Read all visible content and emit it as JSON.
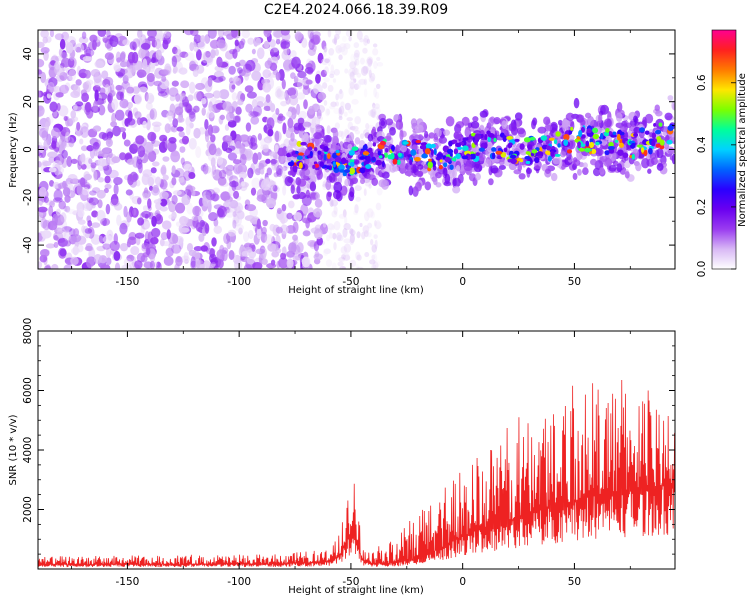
{
  "title": "C2E4.2024.066.18.39.R09",
  "chart_data": [
    {
      "type": "heatmap",
      "xlabel": "Height of straight line (km)",
      "ylabel": "Frequency (Hz)",
      "xlim": [
        -190,
        95
      ],
      "ylim": [
        -50,
        50
      ],
      "xticks": [
        -150,
        -100,
        -50,
        0,
        50
      ],
      "yticks": [
        -40,
        -20,
        0,
        20,
        40
      ],
      "colorbar": {
        "label": "Normalized spectral amplitude",
        "range": [
          0,
          0.77
        ],
        "ticks": [
          0.0,
          0.2,
          0.4,
          0.6
        ],
        "colors": [
          "#ffffff",
          "#d8b8f5",
          "#9a3cf0",
          "#6a00f0",
          "#2a00ff",
          "#0064ff",
          "#00d2ff",
          "#00ff9a",
          "#7cff00",
          "#ffe600",
          "#ff7a00",
          "#ff2020",
          "#ff0090"
        ]
      },
      "regions": [
        {
          "name": "broadband noise",
          "x": [
            -190,
            -62
          ],
          "amplitude": 0.12
        },
        {
          "name": "sparse noise",
          "x": [
            -62,
            -37
          ],
          "amplitude": 0.05
        },
        {
          "name": "meteor signal track",
          "x": [
            -78,
            95
          ],
          "center_freq_hz": [
            -5,
            5
          ],
          "width_hz": 12,
          "peak_amplitude": 0.7
        }
      ]
    },
    {
      "type": "line",
      "xlabel": "Height of straight line (km)",
      "ylabel": "SNR (10 * v/v)",
      "xlim": [
        -190,
        95
      ],
      "ylim": [
        0,
        8000
      ],
      "xticks": [
        -150,
        -100,
        -50,
        0,
        50
      ],
      "yticks": [
        2000,
        4000,
        6000,
        8000
      ],
      "color": "#ee2222",
      "envelope": {
        "x": [
          -190,
          -120,
          -80,
          -60,
          -55,
          -50,
          -49,
          -47,
          -45,
          -40,
          -30,
          -20,
          -10,
          0,
          10,
          20,
          30,
          40,
          50,
          60,
          70,
          80,
          95
        ],
        "base": [
          150,
          160,
          170,
          250,
          450,
          1200,
          1500,
          900,
          300,
          180,
          200,
          350,
          700,
          1100,
          1400,
          1600,
          1900,
          2100,
          2300,
          2500,
          2600,
          2700,
          2900
        ],
        "peak": [
          420,
          480,
          500,
          700,
          1200,
          2900,
          3200,
          2400,
          800,
          700,
          1000,
          2000,
          3000,
          3600,
          4000,
          4800,
          5500,
          6000,
          6500,
          6300,
          6500,
          6400,
          5000
        ]
      }
    }
  ]
}
